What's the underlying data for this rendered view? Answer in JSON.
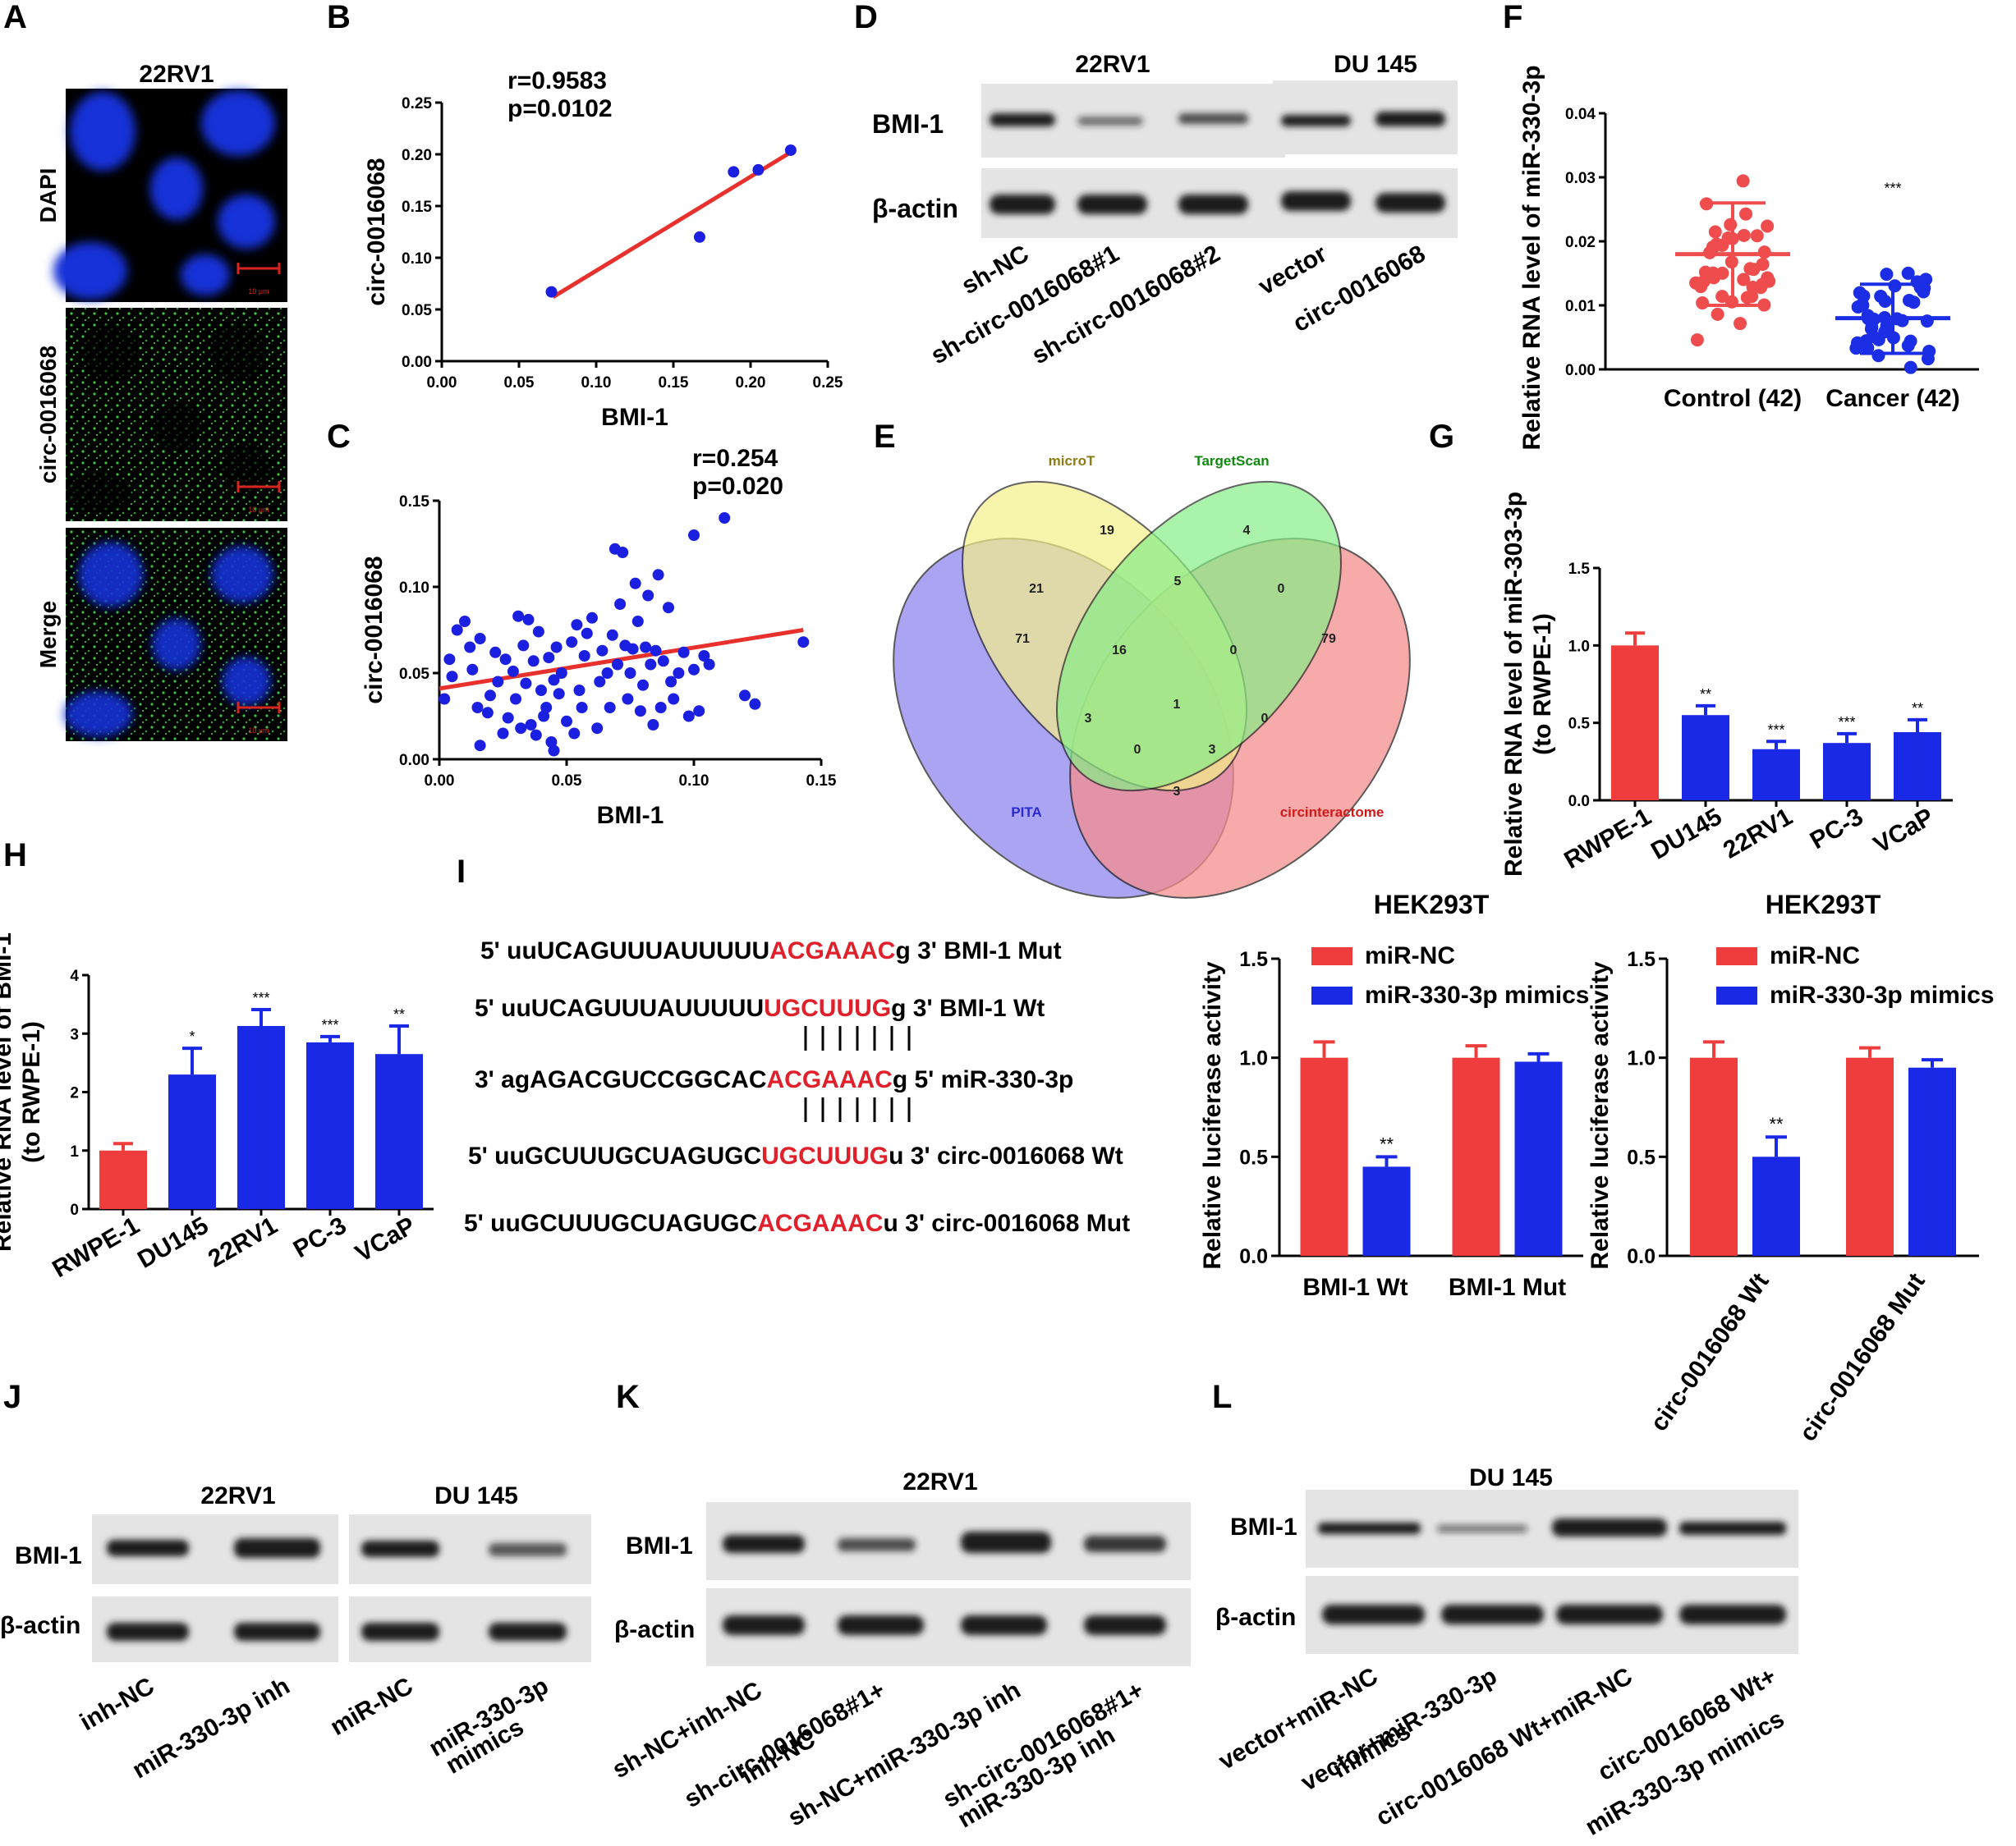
{
  "panels": [
    "A",
    "B",
    "C",
    "D",
    "E",
    "F",
    "G",
    "H",
    "I",
    "J",
    "K",
    "L"
  ],
  "panel_a": {
    "cell_line": "22RV1",
    "rows": [
      "DAPI",
      "circ-0016068",
      "Merge"
    ],
    "scale_bar": "10 μm"
  },
  "panel_d": {
    "cell_lines": [
      "22RV1",
      "DU 145"
    ],
    "bands": [
      "BMI-1",
      "β-actin"
    ],
    "lanes": [
      "sh-NC",
      "sh-circ-0016068#1",
      "sh-circ-0016068#2",
      "vector",
      "circ-0016068"
    ]
  },
  "panel_e": {
    "sets": [
      "microT",
      "TargetScan",
      "PITA",
      "circinteractome"
    ]
  },
  "panel_i_seq": {
    "rows": [
      {
        "pre": "5' uuUCAGUUUAUUUUU",
        "hi": "ACGAAAC",
        "post": "g 3' BMI-1 Mut"
      },
      {
        "pre": "5' uuUCAGUUUAUUUUU",
        "hi": "UGCUUUG",
        "post": "g 3' BMI-1 Wt"
      },
      {
        "pre": "3' agAGACGUCCGGCAC",
        "hi": "ACGAAAC",
        "post": "g 5' miR-330-3p"
      },
      {
        "pre": "5'  uuGCUUUGCUAGUGC",
        "hi": "UGCUUUG",
        "post": "u 3' circ-0016068 Wt"
      },
      {
        "pre": "5' uuGCUUUGCUAGUGC",
        "hi": "ACGAAAC",
        "post": "u 3' circ-0016068 Mut"
      }
    ]
  },
  "panel_j": {
    "cell_lines": [
      "22RV1",
      "DU 145"
    ],
    "bands": [
      "BMI-1",
      "β-actin"
    ],
    "lanes": [
      "inh-NC",
      "miR-330-3p inh",
      "miR-NC",
      "miR-330-3p",
      "mimics"
    ]
  },
  "panel_k": {
    "cell_line": "22RV1",
    "bands": [
      "BMI-1",
      "β-actin"
    ],
    "lanes": [
      "sh-NC+inh-NC",
      "sh-circ-0016068#1+",
      "inh-NC",
      "sh-NC+miR-330-3p inh",
      "sh-circ-0016068#1+",
      "miR-330-3p inh"
    ]
  },
  "panel_l": {
    "cell_line": "DU 145",
    "bands": [
      "BMI-1",
      "β-actin"
    ],
    "lanes": [
      "vector+miR-NC",
      "vector+miR-330-3p",
      "mimics",
      "circ-0016068 Wt+miR-NC",
      "circ-0016068 Wt+",
      "miR-330-3p mimics"
    ]
  },
  "chart_data": [
    {
      "id": "B",
      "type": "scatter",
      "title": "",
      "xlabel": "BMI-1",
      "ylabel": "circ-0016068",
      "stats": [
        "r=0.9583",
        "p=0.0102"
      ],
      "xlim": [
        0,
        0.25
      ],
      "ylim": [
        0,
        0.25
      ],
      "xticks": [
        "0.00",
        "0.05",
        "0.10",
        "0.15",
        "0.20",
        "0.25"
      ],
      "yticks": [
        "0.00",
        "0.05",
        "0.10",
        "0.15",
        "0.20",
        "0.25"
      ],
      "points": [
        [
          0.071,
          0.067
        ],
        [
          0.167,
          0.12
        ],
        [
          0.189,
          0.183
        ],
        [
          0.205,
          0.185
        ],
        [
          0.226,
          0.204
        ]
      ],
      "fit": [
        [
          0.072,
          0.062
        ],
        [
          0.226,
          0.202
        ]
      ]
    },
    {
      "id": "C",
      "type": "scatter",
      "title": "",
      "xlabel": "BMI-1",
      "ylabel": "circ-0016068",
      "stats": [
        "r=0.254",
        "p=0.020"
      ],
      "xlim": [
        0,
        0.15
      ],
      "ylim": [
        0,
        0.15
      ],
      "xticks": [
        "0.00",
        "0.05",
        "0.10",
        "0.15"
      ],
      "yticks": [
        "0.00",
        "0.05",
        "0.10",
        "0.15"
      ],
      "points": [
        [
          0.002,
          0.035
        ],
        [
          0.005,
          0.048
        ],
        [
          0.004,
          0.058
        ],
        [
          0.007,
          0.075
        ],
        [
          0.01,
          0.08
        ],
        [
          0.012,
          0.065
        ],
        [
          0.013,
          0.052
        ],
        [
          0.015,
          0.03
        ],
        [
          0.016,
          0.07
        ],
        [
          0.016,
          0.008
        ],
        [
          0.019,
          0.027
        ],
        [
          0.02,
          0.037
        ],
        [
          0.022,
          0.062
        ],
        [
          0.023,
          0.045
        ],
        [
          0.025,
          0.015
        ],
        [
          0.026,
          0.058
        ],
        [
          0.027,
          0.024
        ],
        [
          0.029,
          0.051
        ],
        [
          0.03,
          0.035
        ],
        [
          0.031,
          0.083
        ],
        [
          0.032,
          0.018
        ],
        [
          0.033,
          0.066
        ],
        [
          0.034,
          0.044
        ],
        [
          0.035,
          0.081
        ],
        [
          0.036,
          0.02
        ],
        [
          0.037,
          0.057
        ],
        [
          0.038,
          0.014
        ],
        [
          0.039,
          0.074
        ],
        [
          0.04,
          0.04
        ],
        [
          0.041,
          0.025
        ],
        [
          0.042,
          0.03
        ],
        [
          0.043,
          0.059
        ],
        [
          0.044,
          0.01
        ],
        [
          0.045,
          0.005
        ],
        [
          0.045,
          0.046
        ],
        [
          0.046,
          0.065
        ],
        [
          0.047,
          0.038
        ],
        [
          0.048,
          0.05
        ],
        [
          0.05,
          0.022
        ],
        [
          0.052,
          0.068
        ],
        [
          0.053,
          0.015
        ],
        [
          0.054,
          0.078
        ],
        [
          0.055,
          0.04
        ],
        [
          0.056,
          0.03
        ],
        [
          0.057,
          0.06
        ],
        [
          0.058,
          0.073
        ],
        [
          0.06,
          0.082
        ],
        [
          0.062,
          0.018
        ],
        [
          0.063,
          0.045
        ],
        [
          0.064,
          0.063
        ],
        [
          0.066,
          0.05
        ],
        [
          0.067,
          0.03
        ],
        [
          0.068,
          0.072
        ],
        [
          0.069,
          0.122
        ],
        [
          0.07,
          0.055
        ],
        [
          0.071,
          0.09
        ],
        [
          0.072,
          0.12
        ],
        [
          0.073,
          0.066
        ],
        [
          0.074,
          0.035
        ],
        [
          0.075,
          0.05
        ],
        [
          0.076,
          0.064
        ],
        [
          0.077,
          0.102
        ],
        [
          0.078,
          0.08
        ],
        [
          0.079,
          0.028
        ],
        [
          0.08,
          0.043
        ],
        [
          0.081,
          0.065
        ],
        [
          0.082,
          0.095
        ],
        [
          0.083,
          0.055
        ],
        [
          0.084,
          0.02
        ],
        [
          0.085,
          0.063
        ],
        [
          0.086,
          0.107
        ],
        [
          0.087,
          0.03
        ],
        [
          0.088,
          0.057
        ],
        [
          0.09,
          0.088
        ],
        [
          0.091,
          0.045
        ],
        [
          0.092,
          0.035
        ],
        [
          0.094,
          0.05
        ],
        [
          0.096,
          0.062
        ],
        [
          0.098,
          0.025
        ],
        [
          0.1,
          0.13
        ],
        [
          0.1,
          0.052
        ],
        [
          0.102,
          0.028
        ],
        [
          0.104,
          0.06
        ],
        [
          0.106,
          0.055
        ],
        [
          0.112,
          0.14
        ],
        [
          0.12,
          0.037
        ],
        [
          0.124,
          0.032
        ],
        [
          0.143,
          0.068
        ]
      ],
      "fit": [
        [
          0.0,
          0.041
        ],
        [
          0.143,
          0.075
        ]
      ]
    },
    {
      "id": "F",
      "type": "scatter",
      "xlabel": "",
      "ylabel": "Relative RNA level of miR-330-3p",
      "categories": [
        "Control (42)",
        "Cancer (42)"
      ],
      "ylim": [
        0,
        0.04
      ],
      "yticks": [
        "0.00",
        "0.01",
        "0.02",
        "0.03",
        "0.04"
      ],
      "series": [
        {
          "name": "Control (42)",
          "color": "#ef4d4d",
          "mean": 0.018,
          "sd_low": 0.01,
          "sd_high": 0.026
        },
        {
          "name": "Cancer (42)",
          "color": "#1b2ee6",
          "mean": 0.008,
          "sd_low": 0.0025,
          "sd_high": 0.0133
        }
      ],
      "annotations": [
        "***"
      ]
    },
    {
      "id": "G",
      "type": "bar",
      "ylabel": "Relative RNA level of miR-303-3p (to RWPE-1)",
      "ylabel_lines": [
        "Relative RNA level of miR-303-3p",
        "(to RWPE-1)"
      ],
      "categories": [
        "RWPE-1",
        "DU145",
        "22RV1",
        "PC-3",
        "VCaP"
      ],
      "values": [
        1.0,
        0.55,
        0.33,
        0.37,
        0.44
      ],
      "errors": [
        0.08,
        0.06,
        0.05,
        0.06,
        0.08
      ],
      "sig": [
        "",
        "**",
        "***",
        "***",
        "**"
      ],
      "colors": [
        "#ef3d3d",
        "#1a29e6",
        "#1a29e6",
        "#1a29e6",
        "#1a29e6"
      ],
      "ylim": [
        0,
        1.5
      ],
      "yticks": [
        "0.0",
        "0.5",
        "1.0",
        "1.5"
      ]
    },
    {
      "id": "H",
      "type": "bar",
      "ylabel": "Relative RNA level of BMI-1 (to RWPE-1)",
      "ylabel_lines": [
        "Relative RNA level of BMI-1",
        "(to RWPE-1)"
      ],
      "categories": [
        "RWPE-1",
        "DU145",
        "22RV1",
        "PC-3",
        "VCaP"
      ],
      "values": [
        1.0,
        2.3,
        3.13,
        2.85,
        2.65
      ],
      "errors": [
        0.12,
        0.45,
        0.28,
        0.1,
        0.48
      ],
      "sig": [
        "",
        "*",
        "***",
        "***",
        "**"
      ],
      "colors": [
        "#ef3d3d",
        "#1a29e6",
        "#1a29e6",
        "#1a29e6",
        "#1a29e6"
      ],
      "ylim": [
        0,
        4
      ],
      "yticks": [
        "0",
        "1",
        "2",
        "3",
        "4"
      ]
    },
    {
      "id": "I1",
      "type": "bar",
      "title": "HEK293T",
      "ylabel": "Relative luciferase activity",
      "categories": [
        "BMI-1 Wt",
        "BMI-1 Mut"
      ],
      "series": [
        {
          "name": "miR-NC",
          "color": "#ef3d3d",
          "values": [
            1.0,
            1.0
          ],
          "errors": [
            0.08,
            0.06
          ]
        },
        {
          "name": "miR-330-3p mimics",
          "color": "#1a29e6",
          "values": [
            0.45,
            0.98
          ],
          "errors": [
            0.05,
            0.04
          ]
        }
      ],
      "sig": [
        "**",
        ""
      ],
      "ylim": [
        0,
        1.5
      ],
      "yticks": [
        "0.0",
        "0.5",
        "1.0",
        "1.5"
      ]
    },
    {
      "id": "I2",
      "type": "bar",
      "title": "HEK293T",
      "ylabel": "Relative luciferase activity",
      "categories": [
        "circ-0016068 Wt",
        "circ-0016068 Mut"
      ],
      "series": [
        {
          "name": "miR-NC",
          "color": "#ef3d3d",
          "values": [
            1.0,
            1.0
          ],
          "errors": [
            0.08,
            0.05
          ]
        },
        {
          "name": "miR-330-3p mimics",
          "color": "#1a29e6",
          "values": [
            0.5,
            0.95
          ],
          "errors": [
            0.1,
            0.04
          ]
        }
      ],
      "sig": [
        "**",
        ""
      ],
      "ylim": [
        0,
        1.5
      ],
      "yticks": [
        "0.0",
        "0.5",
        "1.0",
        "1.5"
      ]
    },
    {
      "id": "E",
      "type": "venn",
      "sets": [
        "microT",
        "TargetScan",
        "PITA",
        "circinteractome"
      ],
      "counts": {
        "microT": 19,
        "TargetScan": 4,
        "PITA": 71,
        "circinteractome": 79,
        "microT&PITA": 21,
        "microT&TargetScan": 5,
        "TargetScan&circinteractome": 0,
        "microT&TargetScan&PITA": 16,
        "microT&TargetScan&circinteractome": 0,
        "all": 1,
        "PITA&TargetScan": 3,
        "TargetScan&circinteractome&PITA": 0,
        "microT&PITA&circinteractome": 3,
        "microT&circinteractome": 0,
        "PITA&circinteractome": 3
      }
    }
  ]
}
